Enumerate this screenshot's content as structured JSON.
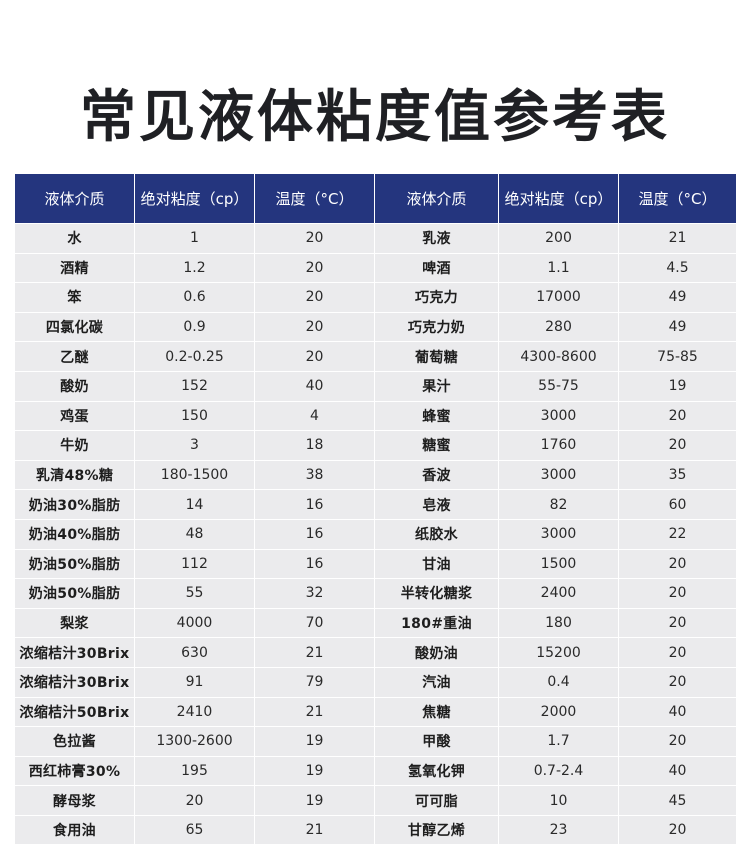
{
  "title": "常见液体粘度值参考表",
  "table": {
    "headers": [
      "液体介质",
      "绝对粘度（cp）",
      "温度（°C）",
      "液体介质",
      "绝对粘度（cp）",
      "温度（°C）"
    ],
    "rows": [
      [
        "水",
        "1",
        "20",
        "乳液",
        "200",
        "21"
      ],
      [
        "酒精",
        "1.2",
        "20",
        "啤酒",
        "1.1",
        "4.5"
      ],
      [
        "笨",
        "0.6",
        "20",
        "巧克力",
        "17000",
        "49"
      ],
      [
        "四氯化碳",
        "0.9",
        "20",
        "巧克力奶",
        "280",
        "49"
      ],
      [
        "乙醚",
        "0.2-0.25",
        "20",
        "葡萄糖",
        "4300-8600",
        "75-85"
      ],
      [
        "酸奶",
        "152",
        "40",
        "果汁",
        "55-75",
        "19"
      ],
      [
        "鸡蛋",
        "150",
        "4",
        "蜂蜜",
        "3000",
        "20"
      ],
      [
        "牛奶",
        "3",
        "18",
        "糖蜜",
        "1760",
        "20"
      ],
      [
        "乳清48%糖",
        "180-1500",
        "38",
        "香波",
        "3000",
        "35"
      ],
      [
        "奶油30%脂肪",
        "14",
        "16",
        "皂液",
        "82",
        "60"
      ],
      [
        "奶油40%脂肪",
        "48",
        "16",
        "纸胶水",
        "3000",
        "22"
      ],
      [
        "奶油50%脂肪",
        "112",
        "16",
        "甘油",
        "1500",
        "20"
      ],
      [
        "奶油50%脂肪",
        "55",
        "32",
        "半转化糖浆",
        "2400",
        "20"
      ],
      [
        "梨浆",
        "4000",
        "70",
        "180#重油",
        "180",
        "20"
      ],
      [
        "浓缩桔汁30Brix",
        "630",
        "21",
        "酸奶油",
        "15200",
        "20"
      ],
      [
        "浓缩桔汁30Brix",
        "91",
        "79",
        "汽油",
        "0.4",
        "20"
      ],
      [
        "浓缩桔汁50Brix",
        "2410",
        "21",
        "焦糖",
        "2000",
        "40"
      ],
      [
        "色拉酱",
        "1300-2600",
        "19",
        "甲酸",
        "1.7",
        "20"
      ],
      [
        "西红柿膏30%",
        "195",
        "19",
        "氢氧化钾",
        "0.7-2.4",
        "40"
      ],
      [
        "酵母浆",
        "20",
        "19",
        "可可脂",
        "10",
        "45"
      ],
      [
        "食用油",
        "65",
        "21",
        "甘醇乙烯",
        "23",
        "20"
      ]
    ]
  },
  "colors": {
    "header_bg": "#24357e",
    "cell_bg": "#ebebed",
    "title_color": "#1f2024"
  }
}
